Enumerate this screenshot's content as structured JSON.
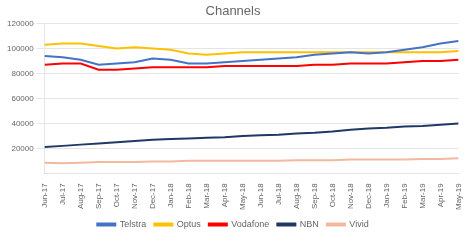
{
  "chart_data": {
    "type": "line",
    "title": "Channels",
    "categories": [
      "Jun-17",
      "Jul-17",
      "Aug-17",
      "Sep-17",
      "Oct-17",
      "Nov-17",
      "Dec-17",
      "Jan-18",
      "Feb-18",
      "Mar-18",
      "Apr-18",
      "May-18",
      "Jun-18",
      "Jul-18",
      "Aug-18",
      "Sep-18",
      "Oct-18",
      "Nov-18",
      "Dec-18",
      "Jan-19",
      "Feb-19",
      "Mar-19",
      "Apr-19",
      "May-19"
    ],
    "series": [
      {
        "name": "Telstra",
        "color": "#4472c4",
        "values": [
          94000,
          93000,
          91000,
          87000,
          88000,
          89000,
          92000,
          91000,
          88000,
          88000,
          89000,
          90000,
          91000,
          92000,
          93000,
          95000,
          96000,
          97000,
          96000,
          97000,
          99000,
          101000,
          104000,
          106000
        ]
      },
      {
        "name": "Optus",
        "color": "#ffc000",
        "values": [
          103000,
          104000,
          104000,
          102000,
          100000,
          101000,
          100000,
          99000,
          96000,
          95000,
          96000,
          97000,
          97000,
          97000,
          97000,
          97000,
          97000,
          97000,
          97000,
          97000,
          97000,
          97000,
          97000,
          98000
        ]
      },
      {
        "name": "Vodafone",
        "color": "#ff0000",
        "values": [
          87000,
          88000,
          88000,
          83000,
          83000,
          84000,
          85000,
          85000,
          85000,
          85000,
          86000,
          86000,
          86000,
          86000,
          86000,
          87000,
          87000,
          88000,
          88000,
          88000,
          89000,
          90000,
          90000,
          91000
        ]
      },
      {
        "name": "NBN",
        "color": "#1f3864",
        "values": [
          21000,
          22000,
          23000,
          24000,
          25000,
          26000,
          27000,
          27500,
          28000,
          28500,
          29000,
          30000,
          30500,
          31000,
          32000,
          32500,
          33500,
          35000,
          36000,
          36500,
          37500,
          38000,
          39000,
          40000
        ]
      },
      {
        "name": "Vivid",
        "color": "#f4b8a0",
        "values": [
          8500,
          8000,
          8500,
          9000,
          9000,
          9000,
          9500,
          9500,
          10000,
          10000,
          10000,
          10000,
          10000,
          10000,
          10500,
          10500,
          10500,
          11000,
          11000,
          11000,
          11000,
          11500,
          11500,
          12000
        ]
      }
    ],
    "ylim": [
      0,
      120000
    ],
    "yticks": [
      20000,
      40000,
      60000,
      80000,
      100000,
      120000
    ],
    "grid": true,
    "legend": "bottom"
  }
}
